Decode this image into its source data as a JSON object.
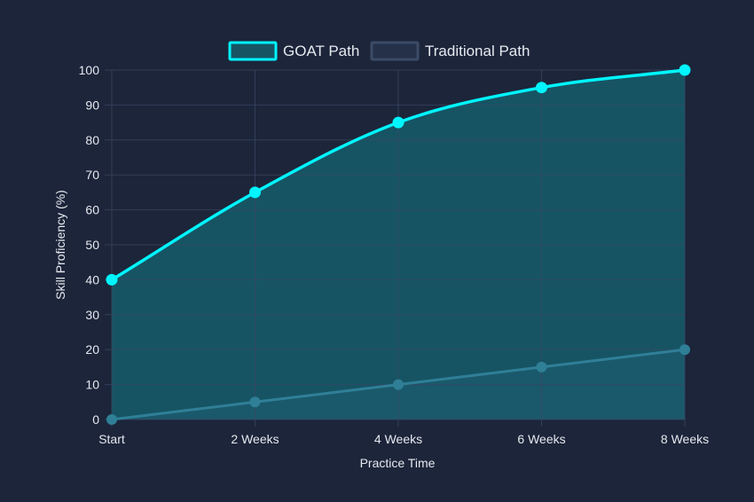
{
  "chart_data": {
    "type": "line",
    "categories": [
      "Start",
      "2 Weeks",
      "4 Weeks",
      "6 Weeks",
      "8 Weeks"
    ],
    "series": [
      {
        "name": "GOAT Path",
        "values": [
          40,
          65,
          85,
          95,
          100
        ],
        "color": "#00f5ff",
        "fill": "#165464"
      },
      {
        "name": "Traditional Path",
        "values": [
          0,
          5,
          10,
          15,
          20
        ],
        "color": "#2f7f97",
        "fill": "#1e5f73",
        "legend_color": "#3c4b66"
      }
    ],
    "xlabel": "Practice Time",
    "ylabel": "Skill Proficiency (%)",
    "ylim": [
      0,
      100
    ],
    "yticks": [
      0,
      10,
      20,
      30,
      40,
      50,
      60,
      70,
      80,
      90,
      100
    ],
    "grid": true,
    "legend_position": "top-center"
  }
}
